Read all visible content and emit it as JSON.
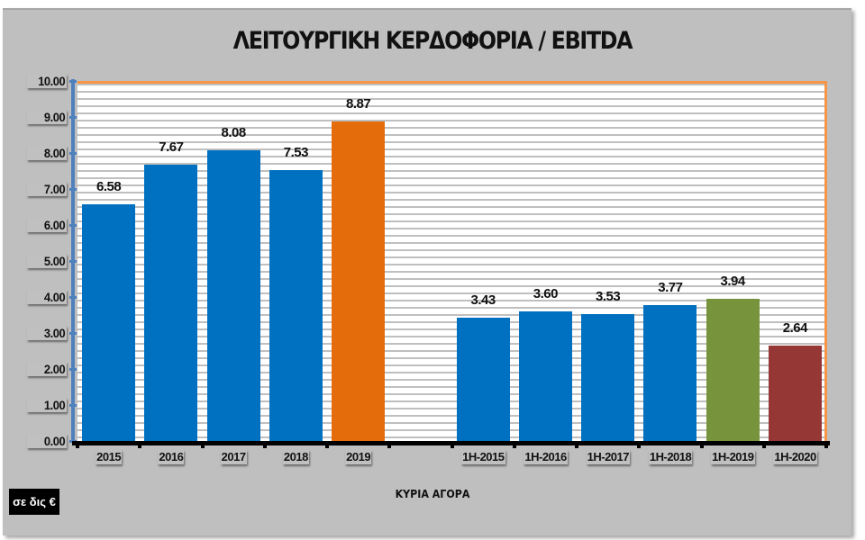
{
  "chart_data": {
    "type": "bar",
    "title": "ΛΕΙΤΟΥΡΓΙΚΗ ΚΕΡΔΟΦΟΡΙΑ / EBITDA",
    "xlabel": "ΚΥΡΙΑ ΑΓΟΡΑ",
    "ylabel": "",
    "unit_label": "σε δις €",
    "ylim": [
      0,
      10
    ],
    "yticks": [
      "0.00",
      "1.00",
      "2.00",
      "3.00",
      "4.00",
      "5.00",
      "6.00",
      "7.00",
      "8.00",
      "9.00",
      "10.00"
    ],
    "grid": true,
    "legend": "none",
    "categories": [
      "2015",
      "2016",
      "2017",
      "2018",
      "2019",
      "",
      "1H-2015",
      "1H-2016",
      "1H-2017",
      "1H-2018",
      "1H-2019",
      "1H-2020"
    ],
    "values": [
      6.58,
      7.67,
      8.08,
      7.53,
      8.87,
      null,
      3.43,
      3.6,
      3.53,
      3.77,
      3.94,
      2.64
    ],
    "value_labels": [
      "6.58",
      "7.67",
      "8.08",
      "7.53",
      "8.87",
      "",
      "3.43",
      "3.60",
      "3.53",
      "3.77",
      "3.94",
      "2.64"
    ],
    "bar_colors": [
      "#0070c0",
      "#0070c0",
      "#0070c0",
      "#0070c0",
      "#e46c0a",
      "",
      "#0070c0",
      "#0070c0",
      "#0070c0",
      "#0070c0",
      "#77933c",
      "#953735"
    ]
  },
  "colors": {
    "background": "#bfbfbf",
    "plot_border": "#f79646",
    "y_axis": "#4f81bd",
    "gridline": "#bfbfbf"
  }
}
